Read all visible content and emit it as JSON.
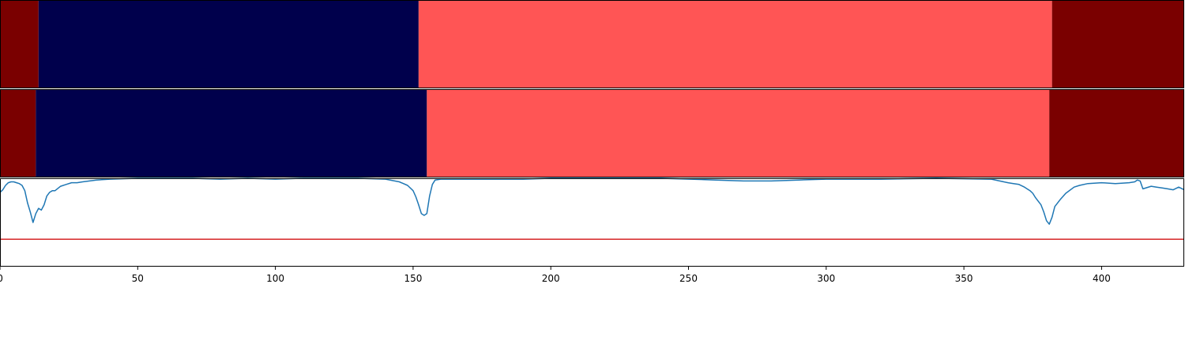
{
  "chart_data": {
    "type": "composite",
    "x_range": [
      0,
      430
    ],
    "x_ticks": [
      0,
      50,
      100,
      150,
      200,
      250,
      300,
      350,
      400
    ],
    "x_tick_labels": [
      "0",
      "50",
      "100",
      "150",
      "200",
      "250",
      "300",
      "350",
      "400"
    ],
    "segment_tracks": [
      {
        "segments": [
          {
            "start": 0,
            "end": 14,
            "color": "#7a0000"
          },
          {
            "start": 14,
            "end": 152,
            "color": "#00004c"
          },
          {
            "start": 152,
            "end": 382,
            "color": "#ff5555"
          },
          {
            "start": 382,
            "end": 430,
            "color": "#7a0000"
          }
        ]
      },
      {
        "segments": [
          {
            "start": 0,
            "end": 13,
            "color": "#7a0000"
          },
          {
            "start": 13,
            "end": 155,
            "color": "#00004c"
          },
          {
            "start": 155,
            "end": 381,
            "color": "#ff5555"
          },
          {
            "start": 381,
            "end": 430,
            "color": "#7a0000"
          }
        ]
      }
    ],
    "line_panel": {
      "ylim": [
        0,
        1
      ],
      "threshold": 0.31,
      "threshold_color": "#d62728",
      "line_color": "#1f77b4",
      "x": [
        0,
        1,
        2,
        3,
        4,
        5,
        6,
        7,
        8,
        9,
        10,
        11,
        12,
        13,
        14,
        15,
        16,
        17,
        18,
        19,
        20,
        22,
        24,
        26,
        28,
        30,
        35,
        40,
        50,
        60,
        70,
        80,
        90,
        100,
        110,
        120,
        130,
        140,
        145,
        148,
        150,
        151,
        152,
        153,
        154,
        155,
        156,
        157,
        158,
        160,
        165,
        170,
        180,
        190,
        200,
        220,
        240,
        260,
        270,
        280,
        290,
        300,
        320,
        340,
        360,
        363,
        366,
        368,
        370,
        372,
        374,
        375,
        376,
        378,
        379,
        380,
        381,
        382,
        383,
        385,
        387,
        390,
        392,
        395,
        400,
        405,
        410,
        412,
        413,
        414,
        415,
        418,
        420,
        422,
        424,
        426,
        428,
        430
      ],
      "y": [
        0.84,
        0.87,
        0.92,
        0.95,
        0.96,
        0.96,
        0.95,
        0.94,
        0.92,
        0.86,
        0.72,
        0.62,
        0.5,
        0.6,
        0.66,
        0.64,
        0.7,
        0.8,
        0.84,
        0.86,
        0.86,
        0.91,
        0.93,
        0.95,
        0.95,
        0.96,
        0.98,
        0.99,
        1.0,
        1.0,
        1.0,
        0.99,
        1.0,
        0.99,
        1.0,
        1.0,
        1.0,
        0.99,
        0.96,
        0.92,
        0.86,
        0.79,
        0.7,
        0.6,
        0.58,
        0.6,
        0.8,
        0.93,
        0.98,
        0.99,
        0.99,
        0.99,
        0.99,
        0.99,
        1.0,
        1.0,
        1.0,
        0.98,
        0.97,
        0.97,
        0.98,
        0.99,
        0.99,
        1.0,
        0.99,
        0.97,
        0.95,
        0.94,
        0.93,
        0.9,
        0.86,
        0.83,
        0.78,
        0.7,
        0.62,
        0.52,
        0.48,
        0.56,
        0.68,
        0.76,
        0.83,
        0.9,
        0.92,
        0.94,
        0.95,
        0.94,
        0.95,
        0.96,
        0.98,
        0.97,
        0.88,
        0.91,
        0.9,
        0.89,
        0.88,
        0.87,
        0.9,
        0.87
      ]
    }
  }
}
